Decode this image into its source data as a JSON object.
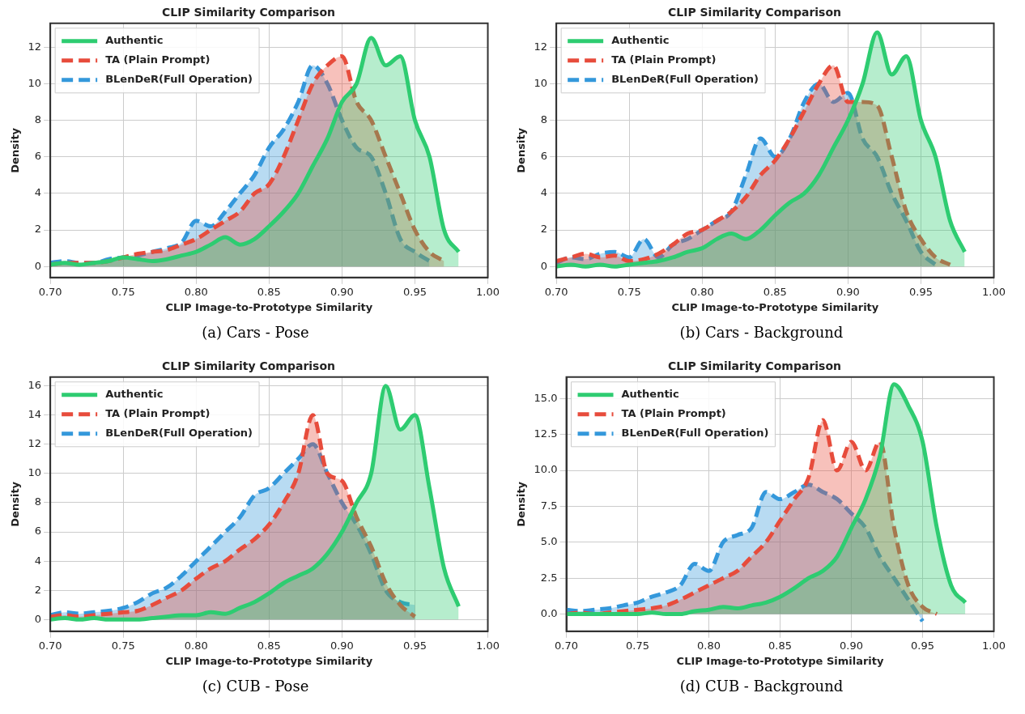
{
  "chart_data": [
    {
      "type": "area",
      "title": "CLIP Similarity Comparison",
      "xlabel": "CLIP Image-to-Prototype Similarity",
      "ylabel": "Density",
      "annotations": [
        "(a) Cars - Pose"
      ],
      "legend": "top left",
      "grid": true,
      "xlim": [
        0.7,
        1.0
      ],
      "xticks": [
        {
          "value": 0.7,
          "label": "0.70"
        },
        {
          "value": 0.75,
          "label": "0.75"
        },
        {
          "value": 0.8,
          "label": "0.80"
        },
        {
          "value": 0.85,
          "label": "0.85"
        },
        {
          "value": 0.9,
          "label": "0.90"
        },
        {
          "value": 0.95,
          "label": "0.95"
        },
        {
          "value": 1.0,
          "label": "1.00"
        }
      ],
      "ylim": [
        -0.6,
        13.3
      ],
      "yticks": [
        0,
        2,
        4,
        6,
        8,
        10,
        12
      ],
      "x": [
        0.7,
        0.71,
        0.72,
        0.73,
        0.74,
        0.75,
        0.76,
        0.77,
        0.78,
        0.79,
        0.8,
        0.81,
        0.82,
        0.83,
        0.84,
        0.85,
        0.86,
        0.87,
        0.88,
        0.89,
        0.9,
        0.91,
        0.92,
        0.93,
        0.94,
        0.95,
        0.96,
        0.97,
        0.98
      ],
      "series": [
        {
          "name": "Authentic",
          "color": "#2ecc71",
          "line_style": "solid",
          "values": [
            0.1,
            0.2,
            0.1,
            0.2,
            0.3,
            0.5,
            0.4,
            0.3,
            0.4,
            0.6,
            0.8,
            1.2,
            1.6,
            1.2,
            1.5,
            2.2,
            3,
            4,
            5.5,
            7,
            9,
            10,
            12.5,
            11,
            11.5,
            8,
            6,
            2,
            0.8
          ]
        },
        {
          "name": "TA (Plain Prompt)",
          "color": "#e74c3c",
          "line_style": "dashed",
          "values": [
            0.1,
            0.2,
            0.2,
            0.2,
            0.3,
            0.5,
            0.7,
            0.8,
            0.9,
            1.2,
            1.5,
            2,
            2.5,
            3,
            4,
            4.5,
            6,
            8,
            10,
            11,
            11.5,
            9,
            8,
            6,
            4,
            2,
            0.8,
            0.3,
            null
          ]
        },
        {
          "name": "BLenDeR(Full Operation)",
          "color": "#3498db",
          "line_style": "dashed",
          "values": [
            0.2,
            0.3,
            0.2,
            0.2,
            0.4,
            0.5,
            0.6,
            0.8,
            1,
            1.3,
            2.5,
            2.2,
            3,
            4,
            5,
            6.5,
            7.5,
            9,
            11,
            10,
            8,
            6.5,
            6,
            4,
            1.5,
            0.8,
            0.3,
            null,
            null
          ]
        }
      ]
    },
    {
      "type": "area",
      "title": "CLIP Similarity Comparison",
      "xlabel": "CLIP Image-to-Prototype Similarity",
      "ylabel": "Density",
      "annotations": [
        "(b) Cars - Background"
      ],
      "legend": "top left",
      "grid": true,
      "xlim": [
        0.7,
        1.0
      ],
      "xticks": [
        {
          "value": 0.7,
          "label": "0.70"
        },
        {
          "value": 0.75,
          "label": "0.75"
        },
        {
          "value": 0.8,
          "label": "0.80"
        },
        {
          "value": 0.85,
          "label": "0.85"
        },
        {
          "value": 0.9,
          "label": "0.90"
        },
        {
          "value": 0.95,
          "label": "0.95"
        },
        {
          "value": 1.0,
          "label": "1.00"
        }
      ],
      "ylim": [
        -0.6,
        13.3
      ],
      "yticks": [
        0,
        2,
        4,
        6,
        8,
        10,
        12
      ],
      "x": [
        0.7,
        0.71,
        0.72,
        0.73,
        0.74,
        0.75,
        0.76,
        0.77,
        0.78,
        0.79,
        0.8,
        0.81,
        0.82,
        0.83,
        0.84,
        0.85,
        0.86,
        0.87,
        0.88,
        0.89,
        0.9,
        0.91,
        0.92,
        0.93,
        0.94,
        0.95,
        0.96,
        0.97,
        0.98
      ],
      "series": [
        {
          "name": "Authentic",
          "color": "#2ecc71",
          "line_style": "solid",
          "values": [
            0,
            0.1,
            0,
            0.1,
            0,
            0.1,
            0.2,
            0.3,
            0.5,
            0.8,
            1,
            1.5,
            1.8,
            1.5,
            2,
            2.8,
            3.5,
            4,
            5,
            6.5,
            8,
            10,
            12.8,
            10.5,
            11.5,
            8,
            6,
            2.5,
            0.8
          ]
        },
        {
          "name": "TA (Plain Prompt)",
          "color": "#e74c3c",
          "line_style": "dashed",
          "values": [
            0.3,
            0.5,
            0.7,
            0.5,
            0.6,
            0.3,
            0.4,
            0.7,
            1.2,
            1.8,
            2,
            2.5,
            3,
            3.8,
            5,
            5.8,
            7,
            8.5,
            10,
            11,
            9,
            9,
            8.8,
            6,
            3,
            1.5,
            0.5,
            0.1,
            null
          ]
        },
        {
          "name": "BLenDeR(Full Operation)",
          "color": "#3498db",
          "line_style": "dashed",
          "values": [
            0.2,
            0.5,
            0.4,
            0.7,
            0.8,
            0.5,
            1.5,
            0.5,
            1.2,
            1.5,
            2,
            2.5,
            3,
            5,
            7,
            6,
            7,
            9,
            10,
            9,
            9.5,
            7,
            6,
            4,
            2.5,
            0.8,
            0.1,
            null,
            null
          ]
        }
      ]
    },
    {
      "type": "area",
      "title": "CLIP Similarity Comparison",
      "xlabel": "CLIP Image-to-Prototype Similarity",
      "ylabel": "Density",
      "annotations": [
        "(c) CUB - Pose"
      ],
      "legend": "top left",
      "grid": true,
      "xlim": [
        0.7,
        1.0
      ],
      "xticks": [
        {
          "value": 0.7,
          "label": "0.70"
        },
        {
          "value": 0.75,
          "label": "0.75"
        },
        {
          "value": 0.8,
          "label": "0.80"
        },
        {
          "value": 0.85,
          "label": "0.85"
        },
        {
          "value": 0.9,
          "label": "0.90"
        },
        {
          "value": 0.95,
          "label": "0.95"
        },
        {
          "value": 1.0,
          "label": "1.00"
        }
      ],
      "ylim": [
        -0.8,
        16.6
      ],
      "yticks": [
        0,
        2,
        4,
        6,
        8,
        10,
        12,
        14,
        16
      ],
      "x": [
        0.7,
        0.71,
        0.72,
        0.73,
        0.74,
        0.75,
        0.76,
        0.77,
        0.78,
        0.79,
        0.8,
        0.81,
        0.82,
        0.83,
        0.84,
        0.85,
        0.86,
        0.87,
        0.88,
        0.89,
        0.9,
        0.91,
        0.92,
        0.93,
        0.94,
        0.95,
        0.96,
        0.97,
        0.98
      ],
      "series": [
        {
          "name": "Authentic",
          "color": "#2ecc71",
          "line_style": "solid",
          "values": [
            0,
            0.1,
            0,
            0.1,
            0,
            0,
            0,
            0.1,
            0.2,
            0.3,
            0.3,
            0.5,
            0.4,
            0.8,
            1.2,
            1.8,
            2.5,
            3,
            3.5,
            4.5,
            6,
            8,
            10,
            16,
            13,
            14,
            9,
            3.5,
            0.9
          ]
        },
        {
          "name": "TA (Plain Prompt)",
          "color": "#e74c3c",
          "line_style": "dashed",
          "values": [
            0.2,
            0.3,
            0.2,
            0.3,
            0.4,
            0.5,
            0.6,
            1,
            1.5,
            2,
            2.8,
            3.5,
            4,
            4.8,
            5.5,
            6.5,
            8,
            10,
            14,
            10,
            9.5,
            7,
            5,
            2.5,
            1,
            0.2,
            null,
            null,
            null
          ]
        },
        {
          "name": "BLenDeR(Full Operation)",
          "color": "#3498db",
          "line_style": "dashed",
          "values": [
            0.3,
            0.5,
            0.4,
            0.5,
            0.6,
            0.8,
            1.2,
            1.8,
            2.2,
            3,
            4,
            5,
            6,
            7,
            8.5,
            9,
            10,
            11,
            12,
            10,
            8,
            6.5,
            4.5,
            2,
            1.2,
            1,
            null,
            null,
            null
          ]
        }
      ]
    },
    {
      "type": "area",
      "title": "CLIP Similarity Comparison",
      "xlabel": "CLIP Image-to-Prototype Similarity",
      "ylabel": "Density",
      "annotations": [
        "(d) CUB - Background"
      ],
      "legend": "top left",
      "grid": true,
      "xlim": [
        0.7,
        1.0
      ],
      "xticks": [
        {
          "value": 0.7,
          "label": "0.70"
        },
        {
          "value": 0.75,
          "label": "0.75"
        },
        {
          "value": 0.8,
          "label": "0.80"
        },
        {
          "value": 0.85,
          "label": "0.85"
        },
        {
          "value": 0.9,
          "label": "0.90"
        },
        {
          "value": 0.95,
          "label": "0.95"
        },
        {
          "value": 1.0,
          "label": "1.00"
        }
      ],
      "ylim": [
        -1.2,
        16.5
      ],
      "yticks": [
        {
          "value": 0,
          "label": "0.0"
        },
        {
          "value": 2.5,
          "label": "2.5"
        },
        {
          "value": 5,
          "label": "5.0"
        },
        {
          "value": 7.5,
          "label": "7.5"
        },
        {
          "value": 10,
          "label": "10.0"
        },
        {
          "value": 12.5,
          "label": "12.5"
        },
        {
          "value": 15,
          "label": "15.0"
        }
      ],
      "x": [
        0.7,
        0.71,
        0.72,
        0.73,
        0.74,
        0.75,
        0.76,
        0.77,
        0.78,
        0.79,
        0.8,
        0.81,
        0.82,
        0.83,
        0.84,
        0.85,
        0.86,
        0.87,
        0.88,
        0.89,
        0.9,
        0.91,
        0.92,
        0.93,
        0.94,
        0.95,
        0.96,
        0.97,
        0.98
      ],
      "series": [
        {
          "name": "Authentic",
          "color": "#2ecc71",
          "line_style": "solid",
          "values": [
            0,
            0,
            0,
            0,
            0,
            0,
            0.1,
            0,
            0,
            0.2,
            0.3,
            0.5,
            0.4,
            0.6,
            0.8,
            1.2,
            1.8,
            2.5,
            3,
            4,
            6,
            8,
            11,
            16,
            14.5,
            12,
            6,
            2,
            0.8
          ]
        },
        {
          "name": "TA (Plain Prompt)",
          "color": "#e74c3c",
          "line_style": "dashed",
          "values": [
            0,
            0.1,
            0,
            0.1,
            0.2,
            0.3,
            0.4,
            0.6,
            1,
            1.5,
            2,
            2.5,
            3,
            4,
            5,
            6.5,
            8,
            9.5,
            13.5,
            10,
            12,
            10,
            12,
            6,
            2,
            0.5,
            0,
            null,
            null
          ]
        },
        {
          "name": "BLenDeR(Full Operation)",
          "color": "#3498db",
          "line_style": "dashed",
          "values": [
            0.3,
            0.2,
            0.3,
            0.4,
            0.6,
            0.8,
            1.2,
            1.5,
            2,
            3.5,
            3,
            5,
            5.5,
            6,
            8.5,
            8,
            8.5,
            9,
            8.5,
            8,
            7,
            6,
            4,
            2.5,
            1,
            -0.5,
            null,
            null,
            null
          ]
        }
      ]
    }
  ]
}
